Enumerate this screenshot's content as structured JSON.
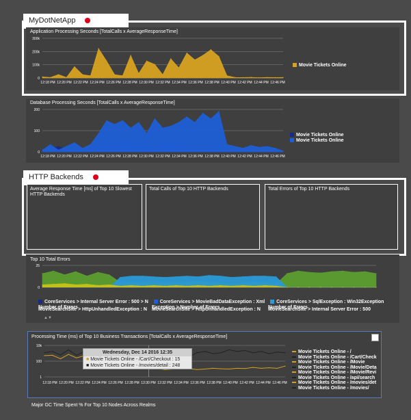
{
  "app_section": {
    "title": "MyDotNetApp"
  },
  "http_section": {
    "title": "HTTP Backends"
  },
  "colors": {
    "background": "#4a4a4a",
    "accent_red": "#e0001a",
    "gold": "#d6a221",
    "blue": "#1e5fd6",
    "navy": "#1a2a8a",
    "green": "#5c9e2f",
    "teal": "#2a9ad8",
    "yellow": "#c8c21a"
  },
  "charts": {
    "app_processing": {
      "title": "Application Processing Seconds [TotalCalls x AverageResponseTime]",
      "legend": [
        "Movie Tickets Online"
      ]
    },
    "db_processing": {
      "title": "Database Processing Seconds [TotalCalls x AverageResponseTime]",
      "legend": [
        "Movie Tickets Online",
        "Movie Tickets Online"
      ]
    },
    "top_errors": {
      "title": "Top 10 Total Errors",
      "legend": [
        "CoreServices > Internal Server Error : 500 > N",
        "CoreServices > MovieBadDataException : Xml",
        "CoreServices > SqlException : Win32Exception",
        "Number of Errors",
        "MovieSearchSite > HttpUnhandledException : N",
        "Exception > Number of Errors",
        "MovieSearchSite > HttpUnhandledException : N",
        "Number of Errors",
        "MovieSearchSite > Internal Server Error : 500"
      ]
    },
    "business_tx": {
      "title": "Processing Time (ms) of Top 10 Business Transactions [TotalCalls x AverageResponseTime]",
      "legend": [
        "Movie Tickets Online - /",
        "Movie Tickets Online - /Cart/Check",
        "Movie Tickets Online - /Movie",
        "Movie Tickets Online - /Movie/Deta",
        "Movie Tickets Online - /Movie/Revi",
        "Movie Tickets Online - /api/search",
        "Movie Tickets Online - /movies/det",
        "Movie Tickets Online - /movies/"
      ],
      "tooltip": {
        "date": "Wednesday, Dec 14 2016 12:35",
        "rows": [
          "Movie Tickets Online - /Cart/Checkout : 15",
          "Movie Tickets Online - /movies/detail : 248"
        ]
      }
    },
    "gc_time": {
      "title": "Major GC Time Spent % For Top 10 Nodes Across Realms"
    }
  },
  "http_boxes": [
    "Average Response Time [ms] of Top 10 Slowest HTTP Backends",
    "Total Calls of Top 10 HTTP Backends",
    "Total Errors of Top 10 HTTP Backends"
  ],
  "x_ticks": [
    "12:18 PM",
    "12:20 PM",
    "12:22 PM",
    "12:24 PM",
    "12:26 PM",
    "12:28 PM",
    "12:30 PM",
    "12:32 PM",
    "12:34 PM",
    "12:36 PM",
    "12:38 PM",
    "12:40 PM",
    "12:42 PM",
    "12:44 PM",
    "12:46 PM"
  ],
  "chart_data": [
    {
      "type": "area",
      "title": "Application Processing Seconds [TotalCalls x AverageResponseTime]",
      "ylim": [
        0,
        350000
      ],
      "y_ticks": [
        "300k",
        "200k",
        "100k",
        "0"
      ],
      "series": [
        {
          "name": "Movie Tickets Online",
          "color": "#d6a221",
          "values": [
            10000,
            5000,
            30000,
            5000,
            100000,
            30000,
            20000,
            260000,
            150000,
            30000,
            20000,
            200000,
            40000,
            150000,
            120000,
            30000,
            170000,
            90000,
            220000,
            160000,
            200000,
            250000,
            190000,
            20000,
            5000,
            4000,
            6000,
            3000,
            5000,
            4000,
            5000
          ]
        }
      ]
    },
    {
      "type": "area",
      "title": "Database Processing Seconds [TotalCalls x AverageResponseTime]",
      "ylim": [
        0,
        230
      ],
      "y_ticks": [
        "200",
        "100",
        "0"
      ],
      "series": [
        {
          "name": "Movie Tickets Online",
          "color": "#1a2a8a",
          "values": [
            10,
            20,
            30,
            15,
            10,
            20,
            25,
            30,
            40,
            35,
            60,
            50,
            40,
            35,
            30,
            45,
            50,
            40,
            30,
            25,
            20,
            15,
            10,
            10,
            8,
            6,
            5,
            5,
            4,
            4,
            4
          ]
        },
        {
          "name": "Movie Tickets Online",
          "color": "#1e5fd6",
          "values": [
            10,
            40,
            10,
            30,
            50,
            20,
            40,
            100,
            170,
            150,
            170,
            130,
            160,
            100,
            180,
            130,
            140,
            160,
            190,
            160,
            210,
            180,
            220,
            40,
            30,
            20,
            35,
            25,
            30,
            20,
            5
          ]
        }
      ]
    },
    {
      "type": "area",
      "title": "Top 10 Total Errors",
      "ylim": [
        0,
        35
      ],
      "y_ticks": [
        "25",
        "0"
      ],
      "series": [
        {
          "name": "MovieSearchSite > Internal Server Error : 500",
          "color": "#5c9e2f",
          "values": [
            22,
            26,
            20,
            25,
            18,
            24,
            20,
            8,
            6,
            7,
            8,
            7,
            6,
            8,
            10,
            7,
            6,
            5,
            6,
            8,
            7,
            5,
            22,
            26,
            24,
            23,
            25,
            26,
            24,
            25,
            22
          ]
        },
        {
          "name": "CoreServices > SqlException : Win32Exception",
          "color": "#2a9ad8",
          "values": [
            0,
            0,
            0,
            0,
            0,
            0,
            0,
            16,
            18,
            18,
            17,
            16,
            17,
            18,
            17,
            19,
            18,
            16,
            17,
            18,
            18,
            17,
            0,
            0,
            0,
            0,
            0,
            0,
            0,
            0,
            0
          ]
        },
        {
          "name": "CoreServices > MovieBadDataException : Xml",
          "color": "#1e5fd6",
          "values": [
            0,
            0,
            0,
            0,
            0,
            0,
            0,
            2,
            3,
            2,
            3,
            2,
            3,
            2,
            3,
            2,
            3,
            2,
            3,
            2,
            3,
            2,
            0,
            0,
            0,
            0,
            0,
            0,
            0,
            0,
            0
          ]
        },
        {
          "name": "CoreServices > Internal Server Error : 500 > N",
          "color": "#c8c21a",
          "values": [
            4,
            5,
            6,
            4,
            5,
            3,
            4,
            2,
            3,
            2,
            3,
            2,
            3,
            2,
            3,
            2,
            3,
            2,
            3,
            2,
            3,
            2,
            0,
            0,
            0,
            0,
            0,
            0,
            0,
            0,
            0
          ]
        }
      ]
    },
    {
      "type": "line",
      "title": "Processing Time (ms) of Top 10 Business Transactions [TotalCalls x AverageResponseTime]",
      "y_ticks": [
        "10k",
        "100",
        "1"
      ],
      "log_scale": true,
      "series": [
        {
          "name": "Movie Tickets Online - /",
          "color": "#d6a221",
          "values": [
            800,
            900,
            300,
            1200,
            400,
            800,
            300,
            600,
            200,
            900,
            500,
            700,
            600,
            300,
            15,
            10,
            12,
            15,
            14,
            10,
            12,
            15,
            13,
            12,
            15,
            14,
            20,
            15,
            18,
            15,
            30
          ]
        },
        {
          "name": "Movie Tickets Online - /movies/detail",
          "color": "#222222",
          "values": [
            2000,
            3000,
            1000,
            5000,
            900,
            3000,
            2000,
            800,
            1500,
            3000,
            1200,
            900,
            2500,
            248,
            3000,
            5000,
            2000,
            1000,
            500,
            2000,
            3000,
            1500,
            2000,
            5000,
            3000,
            4000,
            2000,
            3000,
            1500,
            2500,
            2000
          ]
        }
      ]
    }
  ]
}
